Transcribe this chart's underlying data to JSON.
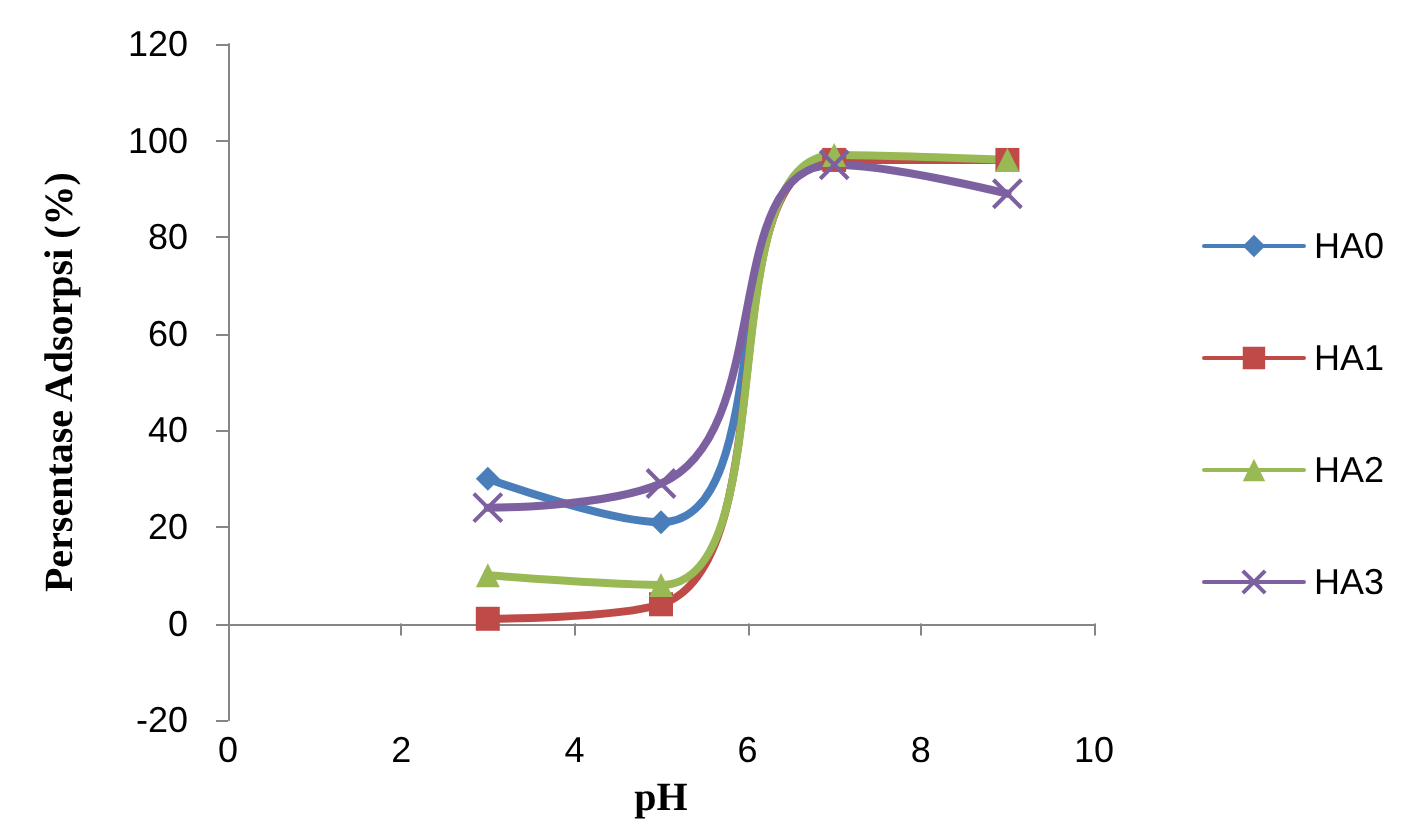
{
  "chart_data": {
    "type": "line",
    "xlabel": "pH",
    "ylabel": "Persentase Adsorpsi (%)",
    "x": [
      3,
      5,
      7,
      9
    ],
    "series": [
      {
        "name": "HA0",
        "color": "#4a7ebb",
        "marker": "diamond",
        "values": [
          30,
          21,
          96,
          96
        ]
      },
      {
        "name": "HA1",
        "color": "#be4b48",
        "marker": "square",
        "values": [
          1,
          4,
          96,
          96
        ]
      },
      {
        "name": "HA2",
        "color": "#98b954",
        "marker": "triangle",
        "values": [
          10,
          8,
          97,
          96
        ]
      },
      {
        "name": "HA3",
        "color": "#7d60a0",
        "marker": "cross",
        "values": [
          24,
          29,
          95,
          89
        ]
      }
    ],
    "xlim": [
      0,
      10
    ],
    "xticks": [
      0,
      2,
      4,
      6,
      8,
      10
    ],
    "ylim": [
      -20,
      120
    ],
    "yticks": [
      -20,
      0,
      20,
      40,
      60,
      80,
      100,
      120
    ],
    "legend": "right",
    "line_style": "solid"
  }
}
